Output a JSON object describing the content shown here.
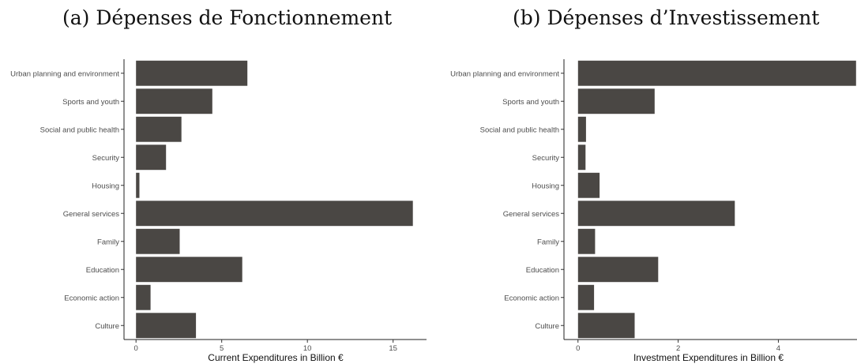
{
  "chart_data": [
    {
      "type": "bar",
      "orientation": "horizontal",
      "title": "(a) Dépenses de Fonctionnement",
      "xlabel": "Current Expenditures in Billion €",
      "ylabel": "",
      "categories": [
        "Urban planning and environment",
        "Sports and youth",
        "Social and public health",
        "Security",
        "Housing",
        "General services",
        "Family",
        "Education",
        "Economic action",
        "Culture"
      ],
      "values": [
        6.5,
        4.45,
        2.65,
        1.75,
        0.2,
        16.15,
        2.55,
        6.2,
        0.85,
        3.5
      ],
      "xlim": [
        -0.7,
        16.95
      ],
      "xticks": [
        0,
        5,
        10,
        15
      ],
      "grid": false,
      "bar_color": "#4a4744"
    },
    {
      "type": "bar",
      "orientation": "horizontal",
      "title": "(b) Dépenses d’Investissement",
      "xlabel": "Investment Expenditures in Billion €",
      "ylabel": "",
      "categories": [
        "Urban planning and environment",
        "Sports and youth",
        "Social and public health",
        "Security",
        "Housing",
        "General services",
        "Family",
        "Education",
        "Economic action",
        "Culture"
      ],
      "values": [
        5.55,
        1.53,
        0.16,
        0.15,
        0.43,
        3.13,
        0.34,
        1.6,
        0.32,
        1.13
      ],
      "xlim": [
        -0.28,
        5.57
      ],
      "xticks": [
        0,
        2,
        4
      ],
      "grid": false,
      "bar_color": "#4a4744"
    }
  ]
}
